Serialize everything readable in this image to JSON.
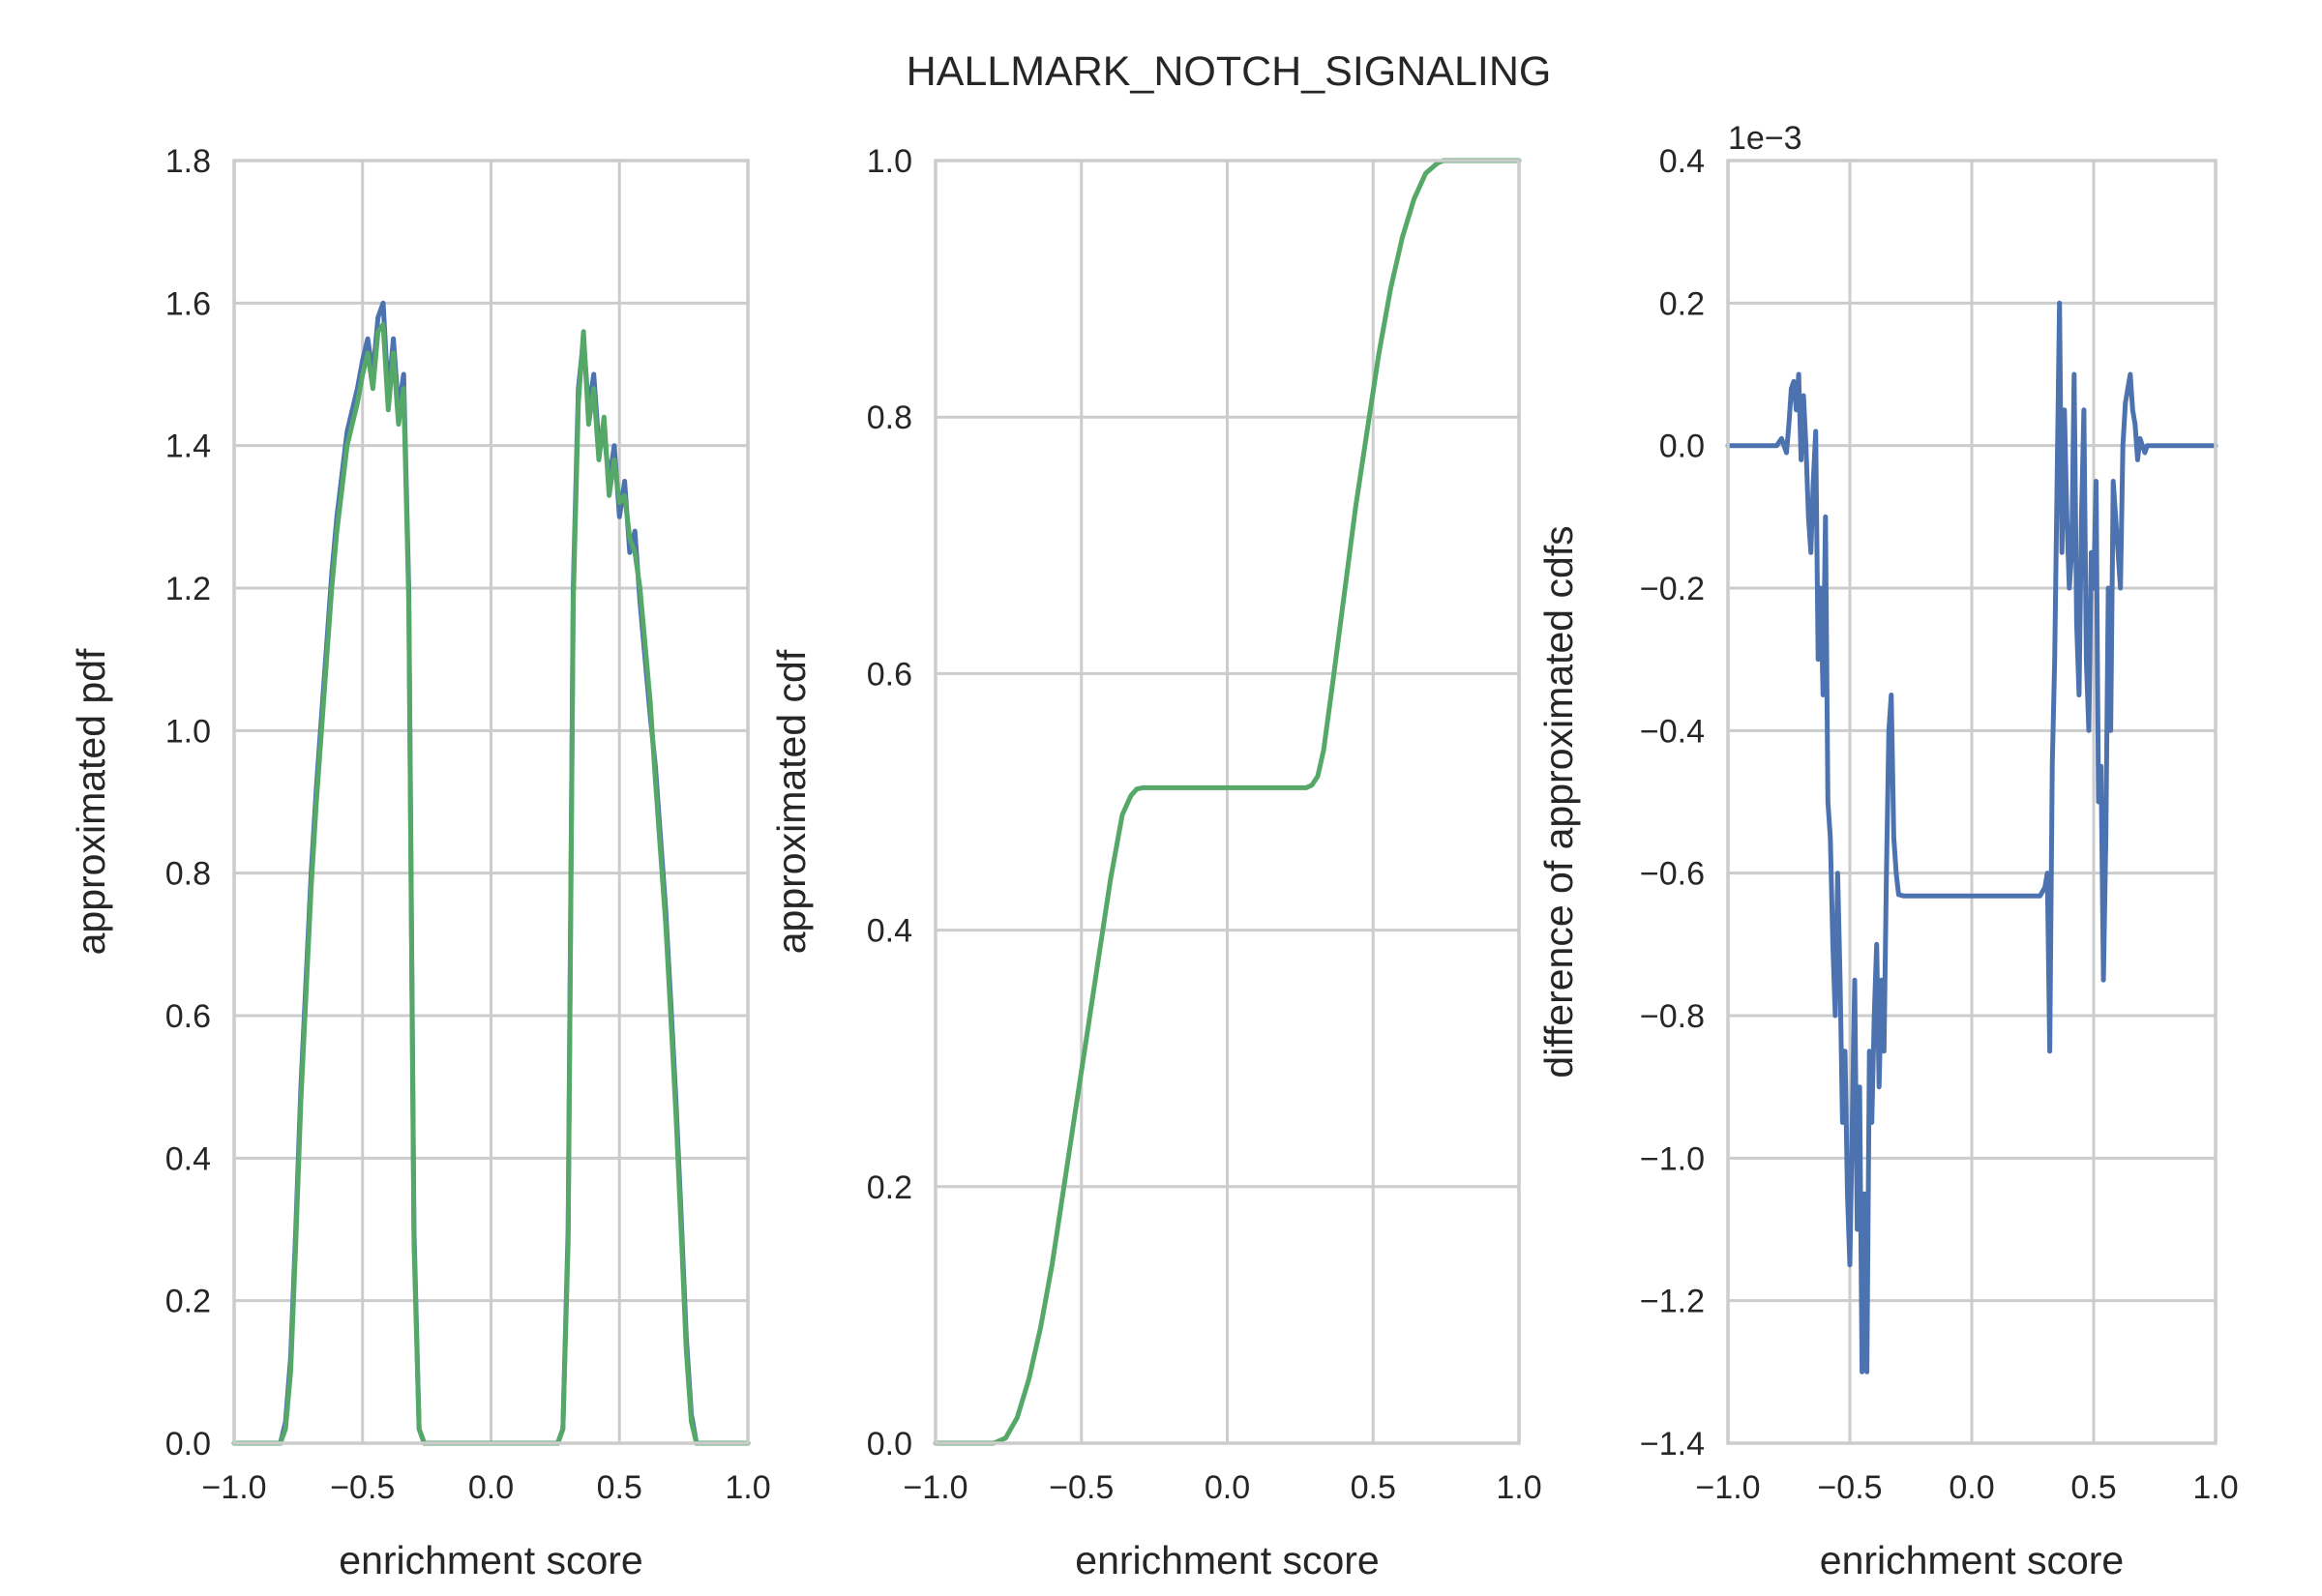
{
  "figure": {
    "title": "HALLMARK_NOTCH_SIGNALING"
  },
  "colors": {
    "blue": "#4c72b0",
    "green": "#55a868"
  },
  "chart_data": [
    {
      "type": "line",
      "xlabel": "enrichment score",
      "ylabel": "approximated pdf",
      "xlim": [
        -1.0,
        1.0
      ],
      "ylim": [
        0.0,
        1.8
      ],
      "xticks": [
        -1.0,
        -0.5,
        0.0,
        0.5,
        1.0
      ],
      "xtick_labels": [
        "−1.0",
        "−0.5",
        "0.0",
        "0.5",
        "1.0"
      ],
      "yticks": [
        0.0,
        0.2,
        0.4,
        0.6,
        0.8,
        1.0,
        1.2,
        1.4,
        1.6,
        1.8
      ],
      "ytick_labels": [
        "0.0",
        "0.2",
        "0.4",
        "0.6",
        "0.8",
        "1.0",
        "1.2",
        "1.4",
        "1.6",
        "1.8"
      ],
      "grid": true,
      "series": [
        {
          "color": "#4c72b0",
          "x": [
            -1.0,
            -0.82,
            -0.8,
            -0.78,
            -0.76,
            -0.74,
            -0.72,
            -0.7,
            -0.68,
            -0.66,
            -0.64,
            -0.62,
            -0.6,
            -0.58,
            -0.56,
            -0.54,
            -0.52,
            -0.5,
            -0.48,
            -0.46,
            -0.44,
            -0.42,
            -0.4,
            -0.38,
            -0.36,
            -0.34,
            -0.32,
            -0.3,
            -0.28,
            -0.26,
            0.26,
            0.28,
            0.3,
            0.32,
            0.34,
            0.36,
            0.38,
            0.4,
            0.42,
            0.44,
            0.46,
            0.48,
            0.5,
            0.52,
            0.54,
            0.56,
            0.58,
            0.6,
            0.62,
            0.64,
            0.66,
            0.68,
            0.7,
            0.72,
            0.74,
            0.76,
            0.78,
            0.8,
            0.82,
            1.0
          ],
          "y": [
            0.0,
            0.0,
            0.03,
            0.12,
            0.3,
            0.5,
            0.65,
            0.8,
            0.92,
            1.02,
            1.12,
            1.22,
            1.3,
            1.36,
            1.42,
            1.45,
            1.48,
            1.52,
            1.55,
            1.5,
            1.58,
            1.6,
            1.47,
            1.55,
            1.45,
            1.5,
            1.2,
            0.3,
            0.02,
            0.0,
            0.0,
            0.02,
            0.3,
            1.2,
            1.48,
            1.55,
            1.45,
            1.5,
            1.4,
            1.42,
            1.35,
            1.4,
            1.3,
            1.35,
            1.25,
            1.28,
            1.18,
            1.1,
            1.02,
            0.95,
            0.85,
            0.75,
            0.62,
            0.48,
            0.32,
            0.15,
            0.04,
            0.0,
            0.0,
            0.0
          ]
        },
        {
          "color": "#55a868",
          "x": [
            -1.0,
            -0.82,
            -0.8,
            -0.78,
            -0.76,
            -0.74,
            -0.72,
            -0.7,
            -0.68,
            -0.66,
            -0.64,
            -0.62,
            -0.6,
            -0.58,
            -0.56,
            -0.54,
            -0.52,
            -0.5,
            -0.48,
            -0.46,
            -0.44,
            -0.42,
            -0.4,
            -0.38,
            -0.36,
            -0.34,
            -0.32,
            -0.3,
            -0.28,
            -0.26,
            0.26,
            0.28,
            0.3,
            0.32,
            0.34,
            0.36,
            0.38,
            0.4,
            0.42,
            0.44,
            0.46,
            0.48,
            0.5,
            0.52,
            0.54,
            0.56,
            0.58,
            0.6,
            0.62,
            0.64,
            0.66,
            0.68,
            0.7,
            0.72,
            0.74,
            0.76,
            0.78,
            0.8,
            0.82,
            1.0
          ],
          "y": [
            0.0,
            0.0,
            0.02,
            0.1,
            0.28,
            0.48,
            0.63,
            0.78,
            0.9,
            1.0,
            1.1,
            1.2,
            1.28,
            1.34,
            1.4,
            1.43,
            1.46,
            1.5,
            1.53,
            1.48,
            1.56,
            1.57,
            1.45,
            1.53,
            1.43,
            1.48,
            1.18,
            0.28,
            0.02,
            0.0,
            0.0,
            0.02,
            0.28,
            1.18,
            1.46,
            1.56,
            1.43,
            1.48,
            1.38,
            1.44,
            1.33,
            1.38,
            1.32,
            1.33,
            1.27,
            1.25,
            1.2,
            1.12,
            1.04,
            0.93,
            0.83,
            0.73,
            0.6,
            0.46,
            0.3,
            0.13,
            0.03,
            0.0,
            0.0,
            0.0
          ]
        }
      ]
    },
    {
      "type": "line",
      "xlabel": "enrichment score",
      "ylabel": "approximated cdf",
      "xlim": [
        -1.0,
        1.0
      ],
      "ylim": [
        0.0,
        1.0
      ],
      "xticks": [
        -1.0,
        -0.5,
        0.0,
        0.5,
        1.0
      ],
      "xtick_labels": [
        "−1.0",
        "−0.5",
        "0.0",
        "0.5",
        "1.0"
      ],
      "yticks": [
        0.0,
        0.2,
        0.4,
        0.6,
        0.8,
        1.0
      ],
      "ytick_labels": [
        "0.0",
        "0.2",
        "0.4",
        "0.6",
        "0.8",
        "1.0"
      ],
      "grid": true,
      "series": [
        {
          "color": "#55a868",
          "x": [
            -1.0,
            -0.8,
            -0.76,
            -0.72,
            -0.68,
            -0.64,
            -0.6,
            -0.56,
            -0.52,
            -0.48,
            -0.44,
            -0.4,
            -0.36,
            -0.33,
            -0.31,
            -0.29,
            -0.27,
            0.27,
            0.29,
            0.31,
            0.33,
            0.36,
            0.4,
            0.44,
            0.48,
            0.52,
            0.56,
            0.6,
            0.64,
            0.68,
            0.72,
            0.74,
            0.76,
            0.8,
            1.0
          ],
          "y": [
            0.0,
            0.0,
            0.004,
            0.02,
            0.05,
            0.09,
            0.14,
            0.2,
            0.26,
            0.32,
            0.38,
            0.44,
            0.49,
            0.505,
            0.51,
            0.511,
            0.511,
            0.511,
            0.513,
            0.52,
            0.54,
            0.59,
            0.66,
            0.73,
            0.79,
            0.85,
            0.9,
            0.94,
            0.97,
            0.99,
            0.998,
            1.0,
            1.0,
            1.0,
            1.0
          ]
        }
      ]
    },
    {
      "type": "line",
      "xlabel": "enrichment score",
      "ylabel": "difference of approximated cdfs",
      "offset_label": "1e−3",
      "xlim": [
        -1.0,
        1.0
      ],
      "ylim": [
        -1.4,
        0.4
      ],
      "xticks": [
        -1.0,
        -0.5,
        0.0,
        0.5,
        1.0
      ],
      "xtick_labels": [
        "−1.0",
        "−0.5",
        "0.0",
        "0.5",
        "1.0"
      ],
      "yticks": [
        -1.4,
        -1.2,
        -1.0,
        -0.8,
        -0.6,
        -0.4,
        -0.2,
        0.0,
        0.2,
        0.4
      ],
      "ytick_labels": [
        "−1.4",
        "−1.2",
        "−1.0",
        "−0.8",
        "−0.6",
        "−0.4",
        "−0.2",
        "0.0",
        "0.2",
        "0.4"
      ],
      "grid": true,
      "series": [
        {
          "color": "#4c72b0",
          "x": [
            -1.0,
            -0.84,
            -0.8,
            -0.78,
            -0.76,
            -0.75,
            -0.74,
            -0.73,
            -0.72,
            -0.71,
            -0.7,
            -0.69,
            -0.68,
            -0.67,
            -0.66,
            -0.65,
            -0.64,
            -0.63,
            -0.62,
            -0.61,
            -0.6,
            -0.59,
            -0.58,
            -0.57,
            -0.56,
            -0.55,
            -0.54,
            -0.53,
            -0.52,
            -0.51,
            -0.5,
            -0.49,
            -0.48,
            -0.47,
            -0.46,
            -0.45,
            -0.44,
            -0.43,
            -0.42,
            -0.41,
            -0.4,
            -0.39,
            -0.38,
            -0.37,
            -0.36,
            -0.35,
            -0.34,
            -0.33,
            -0.32,
            -0.31,
            -0.3,
            -0.28,
            0.28,
            0.3,
            0.31,
            0.32,
            0.33,
            0.34,
            0.35,
            0.36,
            0.37,
            0.38,
            0.39,
            0.4,
            0.41,
            0.42,
            0.43,
            0.44,
            0.45,
            0.46,
            0.47,
            0.48,
            0.49,
            0.5,
            0.51,
            0.52,
            0.53,
            0.54,
            0.55,
            0.56,
            0.57,
            0.58,
            0.59,
            0.6,
            0.61,
            0.62,
            0.63,
            0.64,
            0.65,
            0.66,
            0.67,
            0.68,
            0.69,
            0.7,
            0.71,
            0.72,
            0.73,
            0.74,
            0.75,
            0.76,
            0.78,
            0.8,
            1.0
          ],
          "y": [
            0.0,
            0.0,
            0.0,
            0.01,
            -0.01,
            0.03,
            0.08,
            0.09,
            0.05,
            0.1,
            -0.02,
            0.07,
            0.0,
            -0.1,
            -0.15,
            -0.05,
            0.02,
            -0.3,
            -0.2,
            -0.35,
            -0.1,
            -0.5,
            -0.55,
            -0.7,
            -0.8,
            -0.6,
            -0.75,
            -0.95,
            -0.85,
            -1.05,
            -1.15,
            -0.95,
            -0.75,
            -1.1,
            -0.9,
            -1.3,
            -1.05,
            -1.3,
            -0.85,
            -0.95,
            -0.8,
            -0.7,
            -0.9,
            -0.75,
            -0.85,
            -0.6,
            -0.4,
            -0.35,
            -0.55,
            -0.6,
            -0.63,
            -0.632,
            -0.632,
            -0.62,
            -0.6,
            -0.85,
            -0.45,
            -0.3,
            -0.05,
            0.2,
            -0.15,
            0.05,
            -0.1,
            -0.2,
            -0.15,
            0.1,
            -0.25,
            -0.35,
            -0.1,
            0.05,
            -0.3,
            -0.4,
            -0.15,
            -0.2,
            -0.05,
            -0.5,
            -0.45,
            -0.75,
            -0.55,
            -0.2,
            -0.4,
            -0.05,
            -0.1,
            -0.15,
            -0.2,
            0.0,
            0.06,
            0.08,
            0.1,
            0.05,
            0.03,
            -0.02,
            0.01,
            0.0,
            -0.01,
            0.0,
            0.0,
            0.0,
            0.0,
            0.0,
            0.0,
            0.0,
            0.0
          ]
        }
      ]
    }
  ]
}
